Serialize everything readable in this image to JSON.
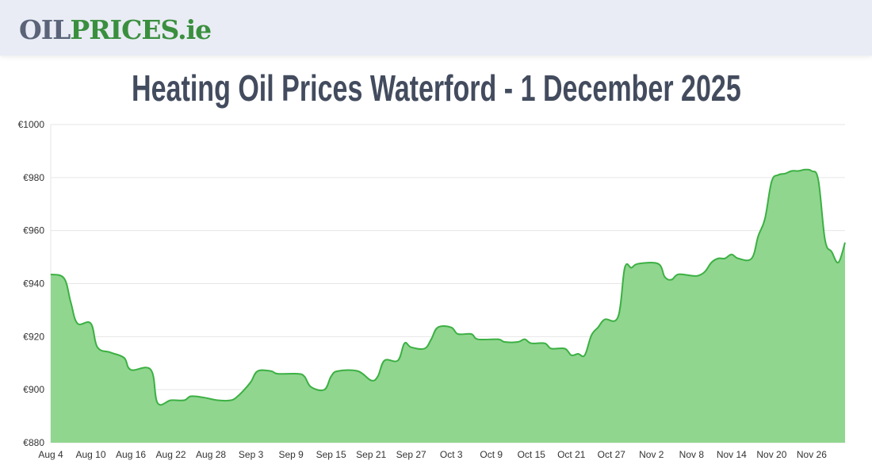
{
  "header": {
    "logo_part1": "OIL",
    "logo_part2": "PRICES.ie"
  },
  "chart_data": {
    "type": "area",
    "title": "Heating Oil Prices Waterford - 1 December 2025",
    "xlabel": "",
    "ylabel": "",
    "ylim": [
      880,
      1000
    ],
    "yticks": [
      "€880",
      "€900",
      "€920",
      "€940",
      "€960",
      "€980",
      "€1000"
    ],
    "ytick_values": [
      880,
      900,
      920,
      940,
      960,
      980,
      1000
    ],
    "xlim": [
      "2025-08-04",
      "2025-12-01"
    ],
    "xticks": [
      "Aug 4",
      "Aug 10",
      "Aug 16",
      "Aug 22",
      "Aug 28",
      "Sep 3",
      "Sep 9",
      "Sep 15",
      "Sep 21",
      "Sep 27",
      "Oct 3",
      "Oct 9",
      "Oct 15",
      "Oct 21",
      "Oct 27",
      "Nov 2",
      "Nov 8",
      "Nov 14",
      "Nov 20",
      "Nov 26"
    ],
    "grid": true,
    "colors": {
      "line": "#3cb043",
      "fill": "#90d68f",
      "grid": "#e6e6e6"
    },
    "points": [
      [
        "2025-08-04",
        943.5
      ],
      [
        "2025-08-06",
        942
      ],
      [
        "2025-08-07",
        933
      ],
      [
        "2025-08-08",
        925
      ],
      [
        "2025-08-10",
        925
      ],
      [
        "2025-08-11",
        916
      ],
      [
        "2025-08-13",
        914
      ],
      [
        "2025-08-15",
        912
      ],
      [
        "2025-08-16",
        907.5
      ],
      [
        "2025-08-19",
        907.5
      ],
      [
        "2025-08-20",
        895
      ],
      [
        "2025-08-22",
        896
      ],
      [
        "2025-08-24",
        896
      ],
      [
        "2025-08-25",
        897.5
      ],
      [
        "2025-08-27",
        897
      ],
      [
        "2025-08-29",
        896
      ],
      [
        "2025-08-31",
        896
      ],
      [
        "2025-09-01",
        897.5
      ],
      [
        "2025-09-02",
        900
      ],
      [
        "2025-09-03",
        903
      ],
      [
        "2025-09-04",
        907
      ],
      [
        "2025-09-06",
        907
      ],
      [
        "2025-09-07",
        906
      ],
      [
        "2025-09-10",
        906
      ],
      [
        "2025-09-11",
        905
      ],
      [
        "2025-09-12",
        901
      ],
      [
        "2025-09-14",
        900
      ],
      [
        "2025-09-15",
        905
      ],
      [
        "2025-09-16",
        907
      ],
      [
        "2025-09-19",
        907
      ],
      [
        "2025-09-21",
        903.5
      ],
      [
        "2025-09-22",
        905
      ],
      [
        "2025-09-23",
        911
      ],
      [
        "2025-09-25",
        911
      ],
      [
        "2025-09-26",
        917.5
      ],
      [
        "2025-09-27",
        916
      ],
      [
        "2025-09-29",
        915.5
      ],
      [
        "2025-09-30",
        919
      ],
      [
        "2025-10-01",
        923.5
      ],
      [
        "2025-10-03",
        923.5
      ],
      [
        "2025-10-04",
        921
      ],
      [
        "2025-10-06",
        921
      ],
      [
        "2025-10-07",
        919
      ],
      [
        "2025-10-10",
        919
      ],
      [
        "2025-10-11",
        918
      ],
      [
        "2025-10-13",
        918
      ],
      [
        "2025-10-14",
        919
      ],
      [
        "2025-10-15",
        917.5
      ],
      [
        "2025-10-17",
        917.5
      ],
      [
        "2025-10-18",
        915.5
      ],
      [
        "2025-10-20",
        915.5
      ],
      [
        "2025-10-21",
        913
      ],
      [
        "2025-10-22",
        913.5
      ],
      [
        "2025-10-23",
        913
      ],
      [
        "2025-10-24",
        920.5
      ],
      [
        "2025-10-25",
        923.5
      ],
      [
        "2025-10-26",
        926.5
      ],
      [
        "2025-10-28",
        927.5
      ],
      [
        "2025-10-29",
        946
      ],
      [
        "2025-10-30",
        946
      ],
      [
        "2025-10-31",
        947.5
      ],
      [
        "2025-11-03",
        947.5
      ],
      [
        "2025-11-04",
        942.5
      ],
      [
        "2025-11-05",
        941.5
      ],
      [
        "2025-11-06",
        943.5
      ],
      [
        "2025-11-08",
        943
      ],
      [
        "2025-11-09",
        943
      ],
      [
        "2025-11-10",
        944.5
      ],
      [
        "2025-11-11",
        948
      ],
      [
        "2025-11-12",
        949.5
      ],
      [
        "2025-11-13",
        949.5
      ],
      [
        "2025-11-14",
        951
      ],
      [
        "2025-11-15",
        949.5
      ],
      [
        "2025-11-17",
        949.5
      ],
      [
        "2025-11-18",
        958
      ],
      [
        "2025-11-19",
        964.5
      ],
      [
        "2025-11-20",
        978.5
      ],
      [
        "2025-11-21",
        981
      ],
      [
        "2025-11-22",
        981.5
      ],
      [
        "2025-11-23",
        982.5
      ],
      [
        "2025-11-24",
        982.5
      ],
      [
        "2025-11-25",
        983
      ],
      [
        "2025-11-26",
        982.5
      ],
      [
        "2025-11-27",
        979
      ],
      [
        "2025-11-28",
        956.5
      ],
      [
        "2025-11-29",
        952
      ],
      [
        "2025-11-30",
        948
      ],
      [
        "2025-12-01",
        955.5
      ]
    ]
  }
}
